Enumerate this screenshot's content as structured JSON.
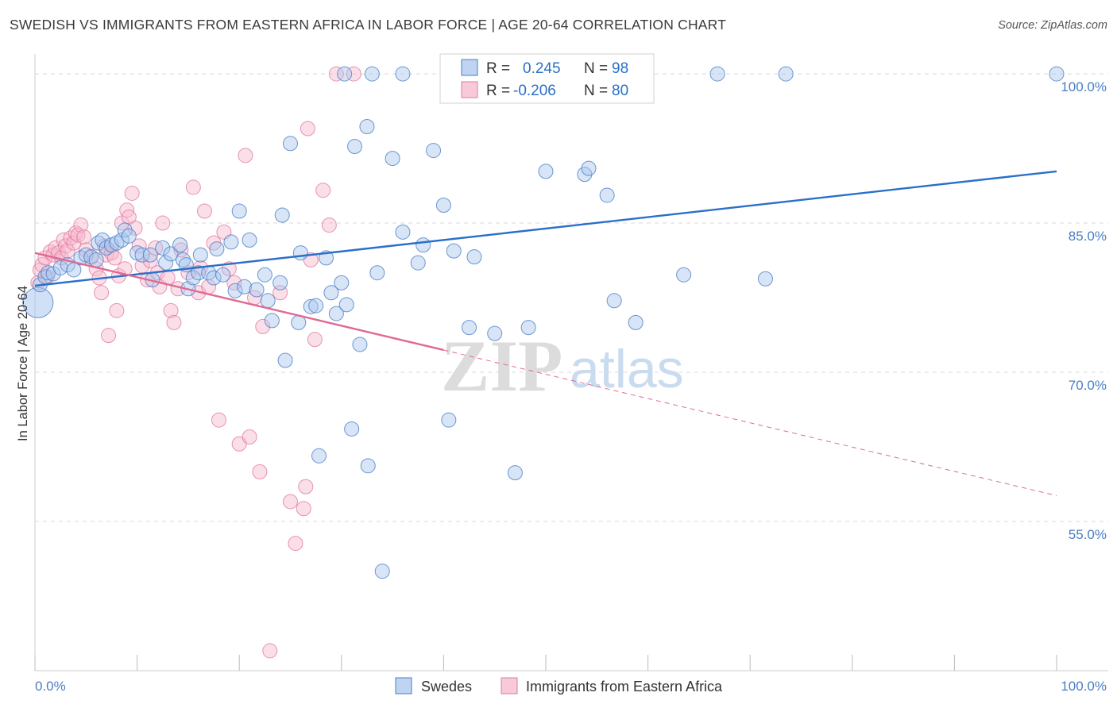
{
  "title": "SWEDISH VS IMMIGRANTS FROM EASTERN AFRICA IN LABOR FORCE | AGE 20-64 CORRELATION CHART",
  "source": "Source: ZipAtlas.com",
  "watermark": {
    "zip": "ZIP",
    "atlas": "atlas"
  },
  "colors": {
    "blue": "#4a7ec4",
    "blue_fill": "#a9c6ee",
    "blue_line": "#2a6fc9",
    "pink": "#e07aa0",
    "pink_fill": "#f6b8cc",
    "pink_line": "#e06a93",
    "grid": "#d8d8d8"
  },
  "legend": {
    "rows": [
      {
        "r_label": "R =",
        "r_value": "0.245",
        "n_label": "N =",
        "n_value": "98"
      },
      {
        "r_label": "R =",
        "r_value": "-0.206",
        "n_label": "N =",
        "n_value": "80"
      }
    ]
  },
  "bottom_legend": {
    "series1": "Swedes",
    "series2": "Immigrants from Eastern Africa"
  },
  "chart_data": {
    "type": "scatter",
    "title": "SWEDISH VS IMMIGRANTS FROM EASTERN AFRICA IN LABOR FORCE | AGE 20-64 CORRELATION CHART",
    "xlabel": "",
    "ylabel": "In Labor Force | Age 20-64",
    "xlim": [
      0,
      100
    ],
    "ylim": [
      40,
      102
    ],
    "x_tick_labels": [
      "0.0%",
      "100.0%"
    ],
    "y_ticks": [
      55,
      70,
      85,
      100
    ],
    "y_tick_labels": [
      "55.0%",
      "70.0%",
      "85.0%",
      "100.0%"
    ],
    "grid": true,
    "legend_position": "top-center",
    "series": [
      {
        "name": "Swedes",
        "r": 0.245,
        "n": 98,
        "trend": {
          "x": [
            0,
            100
          ],
          "y": [
            78.7,
            90.2
          ],
          "dashed_from": null
        },
        "points": [
          [
            0.3,
            77.0
          ],
          [
            0.5,
            78.8
          ],
          [
            1.0,
            79.6
          ],
          [
            1.3,
            80.0
          ],
          [
            1.8,
            79.9
          ],
          [
            2.5,
            80.5
          ],
          [
            3.2,
            80.8
          ],
          [
            3.8,
            80.3
          ],
          [
            4.5,
            81.5
          ],
          [
            5.0,
            81.8
          ],
          [
            5.5,
            81.6
          ],
          [
            6.0,
            81.3
          ],
          [
            6.2,
            83.0
          ],
          [
            6.6,
            83.3
          ],
          [
            7.0,
            82.5
          ],
          [
            7.5,
            82.8
          ],
          [
            8.0,
            83.0
          ],
          [
            8.5,
            83.3
          ],
          [
            8.8,
            84.3
          ],
          [
            9.2,
            83.7
          ],
          [
            10.0,
            82.0
          ],
          [
            10.5,
            81.8
          ],
          [
            11.3,
            81.8
          ],
          [
            11.5,
            79.3
          ],
          [
            12.5,
            82.5
          ],
          [
            12.8,
            81.0
          ],
          [
            13.3,
            81.9
          ],
          [
            14.2,
            82.8
          ],
          [
            14.5,
            81.3
          ],
          [
            14.8,
            80.8
          ],
          [
            15.0,
            78.4
          ],
          [
            15.5,
            79.5
          ],
          [
            16.0,
            80.0
          ],
          [
            16.2,
            81.8
          ],
          [
            17.0,
            80.0
          ],
          [
            17.5,
            79.5
          ],
          [
            17.8,
            82.4
          ],
          [
            18.4,
            79.8
          ],
          [
            19.2,
            83.1
          ],
          [
            19.6,
            78.2
          ],
          [
            20.0,
            86.2
          ],
          [
            20.5,
            78.6
          ],
          [
            21.0,
            83.3
          ],
          [
            21.7,
            78.3
          ],
          [
            22.5,
            79.8
          ],
          [
            22.8,
            77.2
          ],
          [
            23.2,
            75.2
          ],
          [
            24.0,
            79.0
          ],
          [
            24.2,
            85.8
          ],
          [
            24.5,
            71.2
          ],
          [
            25.0,
            93.0
          ],
          [
            25.8,
            75.0
          ],
          [
            26.0,
            82.0
          ],
          [
            27.0,
            76.6
          ],
          [
            27.5,
            76.7
          ],
          [
            27.8,
            61.6
          ],
          [
            28.5,
            81.5
          ],
          [
            29.0,
            78.0
          ],
          [
            29.5,
            75.9
          ],
          [
            30.0,
            79.0
          ],
          [
            30.5,
            76.8
          ],
          [
            31.0,
            64.3
          ],
          [
            31.3,
            92.7
          ],
          [
            31.8,
            72.8
          ],
          [
            32.5,
            94.7
          ],
          [
            32.6,
            60.6
          ],
          [
            33.5,
            80.0
          ],
          [
            34.0,
            50.0
          ],
          [
            35.0,
            91.5
          ],
          [
            36.0,
            84.1
          ],
          [
            37.5,
            81.0
          ],
          [
            38.0,
            82.8
          ],
          [
            39.0,
            92.3
          ],
          [
            40.0,
            86.8
          ],
          [
            40.5,
            65.2
          ],
          [
            41.0,
            82.2
          ],
          [
            42.5,
            74.5
          ],
          [
            43.0,
            81.6
          ],
          [
            45.0,
            73.9
          ],
          [
            47.0,
            59.9
          ],
          [
            48.3,
            74.5
          ],
          [
            50.0,
            90.2
          ],
          [
            53.8,
            89.9
          ],
          [
            54.2,
            90.5
          ],
          [
            56.0,
            87.8
          ],
          [
            56.7,
            77.2
          ],
          [
            58.8,
            75.0
          ],
          [
            63.5,
            79.8
          ],
          [
            71.5,
            79.4
          ],
          [
            30.3,
            100.0
          ],
          [
            33.0,
            100.0
          ],
          [
            36.0,
            100.0
          ],
          [
            40.5,
            100.0
          ],
          [
            42.0,
            100.0
          ],
          [
            47.0,
            100.0
          ],
          [
            66.8,
            100.0
          ],
          [
            73.5,
            100.0
          ],
          [
            100.0,
            100.0
          ]
        ]
      },
      {
        "name": "Immigrants from Eastern Africa",
        "r": -0.206,
        "n": 80,
        "trend": {
          "x": [
            0,
            100
          ],
          "y": [
            82.0,
            57.6
          ],
          "dashed_from": 40
        },
        "points": [
          [
            0.3,
            79.0
          ],
          [
            0.5,
            80.3
          ],
          [
            0.7,
            80.8
          ],
          [
            1.0,
            81.5
          ],
          [
            1.2,
            79.6
          ],
          [
            1.5,
            82.1
          ],
          [
            1.8,
            81.8
          ],
          [
            2.0,
            82.5
          ],
          [
            2.3,
            82.0
          ],
          [
            2.6,
            81.5
          ],
          [
            2.8,
            83.3
          ],
          [
            3.0,
            82.7
          ],
          [
            3.2,
            82.2
          ],
          [
            3.5,
            83.5
          ],
          [
            3.8,
            83.0
          ],
          [
            4.0,
            84.0
          ],
          [
            4.2,
            83.8
          ],
          [
            4.5,
            84.8
          ],
          [
            4.8,
            83.6
          ],
          [
            5.0,
            82.3
          ],
          [
            5.5,
            81.6
          ],
          [
            6.0,
            80.4
          ],
          [
            6.3,
            79.5
          ],
          [
            6.5,
            78.0
          ],
          [
            6.8,
            82.7
          ],
          [
            7.0,
            81.8
          ],
          [
            7.2,
            73.7
          ],
          [
            7.5,
            82.0
          ],
          [
            7.8,
            81.5
          ],
          [
            8.0,
            76.2
          ],
          [
            8.2,
            79.7
          ],
          [
            8.5,
            85.0
          ],
          [
            8.8,
            80.4
          ],
          [
            9.0,
            86.3
          ],
          [
            9.2,
            85.6
          ],
          [
            9.5,
            88.0
          ],
          [
            9.8,
            84.5
          ],
          [
            10.2,
            82.7
          ],
          [
            10.5,
            80.7
          ],
          [
            11.0,
            79.3
          ],
          [
            11.3,
            81.2
          ],
          [
            11.8,
            82.5
          ],
          [
            12.0,
            80.0
          ],
          [
            12.2,
            78.6
          ],
          [
            12.5,
            85.0
          ],
          [
            13.0,
            79.5
          ],
          [
            13.3,
            76.2
          ],
          [
            13.6,
            75.0
          ],
          [
            14.0,
            78.4
          ],
          [
            14.3,
            82.3
          ],
          [
            15.0,
            80.0
          ],
          [
            15.5,
            88.6
          ],
          [
            16.0,
            78.0
          ],
          [
            16.2,
            80.5
          ],
          [
            16.6,
            86.2
          ],
          [
            17.0,
            78.6
          ],
          [
            17.5,
            83.0
          ],
          [
            18.0,
            65.2
          ],
          [
            18.5,
            84.1
          ],
          [
            19.0,
            80.4
          ],
          [
            19.5,
            79.0
          ],
          [
            20.0,
            62.8
          ],
          [
            20.6,
            91.8
          ],
          [
            21.0,
            63.5
          ],
          [
            21.5,
            77.5
          ],
          [
            22.0,
            60.0
          ],
          [
            22.3,
            74.6
          ],
          [
            23.0,
            42.0
          ],
          [
            24.0,
            78.0
          ],
          [
            25.0,
            57.0
          ],
          [
            25.5,
            52.8
          ],
          [
            26.3,
            56.3
          ],
          [
            26.5,
            58.5
          ],
          [
            26.7,
            94.5
          ],
          [
            27.0,
            81.3
          ],
          [
            27.4,
            73.3
          ],
          [
            28.2,
            88.3
          ],
          [
            28.8,
            84.8
          ],
          [
            29.5,
            100.0
          ],
          [
            31.2,
            100.0
          ]
        ]
      }
    ]
  }
}
